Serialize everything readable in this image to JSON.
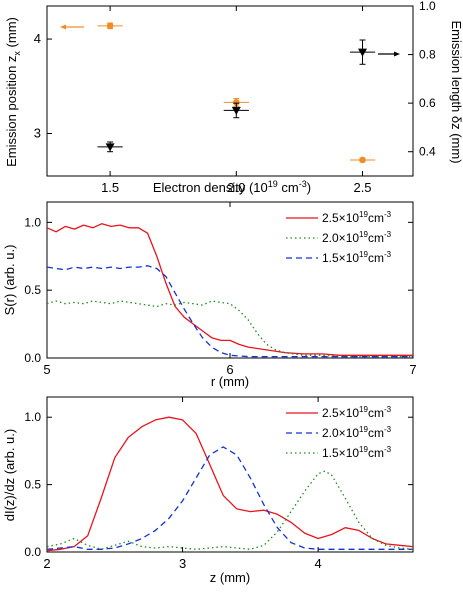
{
  "chart_data": [
    {
      "type": "scatter",
      "xlabel": "Electron density (10",
      "xlabel_sup": "19",
      "xlabel_mid": " cm",
      "xlabel_sup2": "-3",
      "xlabel_end": ")",
      "ylabel_left": "Emission position z",
      "ylabel_left_sub": "x",
      "ylabel_left_unit": " (mm)",
      "ylabel_right": "Emission length δz (mm)",
      "xlim": [
        1.25,
        2.7
      ],
      "ylim_left": [
        2.55,
        4.35
      ],
      "ylim_right": [
        0.3,
        1.0
      ],
      "x_ticks": [
        "1.5",
        "2.0",
        "2.5"
      ],
      "y_left_ticks": [
        "3",
        "4"
      ],
      "y_right_ticks": [
        "0.4",
        "0.6",
        "0.8",
        "1.0"
      ],
      "series": [
        {
          "axis": "left",
          "marker": "circle",
          "color": "#f08c28",
          "x": [
            1.5,
            2.0,
            2.5
          ],
          "y": [
            4.14,
            3.33,
            2.72
          ],
          "yerr": [
            0.03,
            0.04,
            0.02
          ],
          "xerr": [
            0.05,
            0.05,
            0.05
          ]
        },
        {
          "axis": "right",
          "marker": "triangle-down",
          "color": "#000000",
          "x": [
            1.5,
            2.0,
            2.5
          ],
          "y": [
            0.42,
            0.57,
            0.81
          ],
          "yerr": [
            0.02,
            0.03,
            0.05
          ],
          "xerr": [
            0.05,
            0.05,
            0.05
          ]
        }
      ]
    },
    {
      "type": "line",
      "xlabel": "r (mm)",
      "ylabel": "S(r) (arb. u.)",
      "xlim": [
        5,
        7
      ],
      "ylim": [
        0,
        1.15
      ],
      "x_ticks": [
        "5",
        "6",
        "7"
      ],
      "y_ticks": [
        "0.0",
        "0.5",
        "1.0"
      ],
      "legend": "top-right",
      "series": [
        {
          "name_base": "2.5×10",
          "name_sup": "19",
          "name_unit": "cm",
          "name_sup2": "-3",
          "color": "#e8141e",
          "dash": "solid",
          "x": [
            5.0,
            5.05,
            5.1,
            5.15,
            5.2,
            5.25,
            5.3,
            5.35,
            5.4,
            5.45,
            5.5,
            5.55,
            5.6,
            5.65,
            5.7,
            5.75,
            5.8,
            5.85,
            5.9,
            5.95,
            6.0,
            6.05,
            6.1,
            6.2,
            6.3,
            6.4,
            6.5,
            6.6,
            6.7,
            6.8,
            6.9,
            7.0
          ],
          "y": [
            0.96,
            0.93,
            0.97,
            0.95,
            0.98,
            0.96,
            0.99,
            0.97,
            0.98,
            0.96,
            0.96,
            0.92,
            0.75,
            0.55,
            0.38,
            0.3,
            0.25,
            0.2,
            0.15,
            0.13,
            0.13,
            0.1,
            0.08,
            0.06,
            0.04,
            0.03,
            0.03,
            0.02,
            0.02,
            0.02,
            0.02,
            0.02
          ]
        },
        {
          "name_base": "2.0×10",
          "name_sup": "19",
          "name_unit": "cm",
          "name_sup2": "-3",
          "color": "#1f8a1f",
          "dash": "dot",
          "x": [
            5.0,
            5.05,
            5.1,
            5.15,
            5.2,
            5.25,
            5.3,
            5.35,
            5.4,
            5.45,
            5.5,
            5.55,
            5.6,
            5.65,
            5.7,
            5.75,
            5.8,
            5.85,
            5.9,
            5.95,
            6.0,
            6.05,
            6.1,
            6.15,
            6.2,
            6.25,
            6.3,
            6.4,
            6.5,
            6.6,
            6.7,
            6.8,
            6.9,
            7.0
          ],
          "y": [
            0.4,
            0.42,
            0.4,
            0.41,
            0.4,
            0.42,
            0.41,
            0.4,
            0.42,
            0.41,
            0.4,
            0.39,
            0.38,
            0.4,
            0.39,
            0.41,
            0.4,
            0.39,
            0.42,
            0.41,
            0.4,
            0.35,
            0.28,
            0.18,
            0.1,
            0.06,
            0.04,
            0.02,
            0.02,
            0.01,
            0.01,
            0.01,
            0.01,
            0.01
          ]
        },
        {
          "name_base": "1.5×10",
          "name_sup": "19",
          "name_unit": "cm",
          "name_sup2": "-3",
          "color": "#1432d2",
          "dash": "dash",
          "x": [
            5.0,
            5.05,
            5.1,
            5.15,
            5.2,
            5.25,
            5.3,
            5.35,
            5.4,
            5.45,
            5.5,
            5.55,
            5.6,
            5.65,
            5.7,
            5.75,
            5.8,
            5.85,
            5.9,
            5.95,
            6.0,
            6.1,
            6.2,
            6.3,
            6.4,
            6.5,
            6.6,
            6.7,
            6.8,
            6.9,
            7.0
          ],
          "y": [
            0.67,
            0.66,
            0.65,
            0.67,
            0.66,
            0.67,
            0.66,
            0.67,
            0.66,
            0.67,
            0.67,
            0.68,
            0.66,
            0.6,
            0.48,
            0.36,
            0.25,
            0.15,
            0.08,
            0.04,
            0.02,
            0.01,
            0.01,
            0.01,
            0.01,
            0.01,
            0.01,
            0.01,
            0.01,
            0.01,
            0.01
          ]
        }
      ]
    },
    {
      "type": "line",
      "xlabel": "z (mm)",
      "ylabel": "dI(z)/dz (arb. u.)",
      "xlim": [
        2,
        4.7
      ],
      "ylim": [
        0,
        1.15
      ],
      "x_ticks": [
        "2",
        "3",
        "4"
      ],
      "y_ticks": [
        "0.0",
        "0.5",
        "1.0"
      ],
      "legend": "top-right",
      "series": [
        {
          "name_base": "2.5×10",
          "name_sup": "19",
          "name_unit": "cm",
          "name_sup2": "-3",
          "color": "#e8141e",
          "dash": "solid",
          "x": [
            2.0,
            2.1,
            2.2,
            2.3,
            2.4,
            2.5,
            2.6,
            2.7,
            2.8,
            2.9,
            3.0,
            3.1,
            3.2,
            3.3,
            3.4,
            3.5,
            3.6,
            3.7,
            3.8,
            3.9,
            4.0,
            4.1,
            4.2,
            4.3,
            4.4,
            4.5,
            4.6,
            4.7
          ],
          "y": [
            0.01,
            0.02,
            0.04,
            0.12,
            0.4,
            0.7,
            0.85,
            0.93,
            0.98,
            1.0,
            0.98,
            0.88,
            0.65,
            0.42,
            0.32,
            0.3,
            0.31,
            0.28,
            0.22,
            0.14,
            0.1,
            0.13,
            0.18,
            0.16,
            0.1,
            0.06,
            0.05,
            0.04
          ]
        },
        {
          "name_base": "2.0×10",
          "name_sup": "19",
          "name_unit": "cm",
          "name_sup2": "-3",
          "color": "#1432d2",
          "dash": "dash",
          "x": [
            2.0,
            2.1,
            2.2,
            2.3,
            2.4,
            2.5,
            2.6,
            2.7,
            2.8,
            2.9,
            3.0,
            3.1,
            3.2,
            3.3,
            3.4,
            3.5,
            3.6,
            3.7,
            3.8,
            3.9,
            4.0,
            4.1,
            4.2,
            4.3,
            4.4,
            4.5,
            4.6,
            4.7
          ],
          "y": [
            0.02,
            0.03,
            0.04,
            0.02,
            0.02,
            0.03,
            0.06,
            0.1,
            0.16,
            0.25,
            0.38,
            0.55,
            0.72,
            0.78,
            0.72,
            0.55,
            0.35,
            0.18,
            0.07,
            0.03,
            0.02,
            0.02,
            0.02,
            0.02,
            0.02,
            0.02,
            0.02,
            0.02
          ]
        },
        {
          "name_base": "1.5×10",
          "name_sup": "19",
          "name_unit": "cm",
          "name_sup2": "-3",
          "color": "#1f8a1f",
          "dash": "dot",
          "x": [
            2.0,
            2.1,
            2.2,
            2.3,
            2.4,
            2.5,
            2.6,
            2.7,
            2.8,
            2.9,
            3.0,
            3.1,
            3.2,
            3.3,
            3.4,
            3.5,
            3.6,
            3.7,
            3.8,
            3.9,
            4.0,
            4.05,
            4.1,
            4.2,
            4.3,
            4.4,
            4.5,
            4.6,
            4.7
          ],
          "y": [
            0.04,
            0.06,
            0.1,
            0.05,
            0.02,
            0.05,
            0.08,
            0.04,
            0.03,
            0.04,
            0.03,
            0.02,
            0.03,
            0.04,
            0.03,
            0.02,
            0.05,
            0.15,
            0.3,
            0.45,
            0.58,
            0.6,
            0.57,
            0.4,
            0.22,
            0.1,
            0.05,
            0.03,
            0.02
          ]
        }
      ]
    }
  ]
}
